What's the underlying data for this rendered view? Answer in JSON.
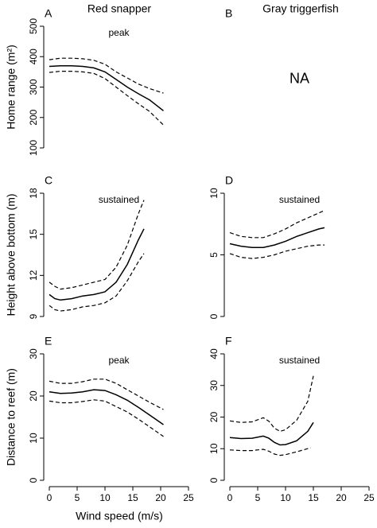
{
  "column_titles": [
    "Red snapper",
    "Gray triggerfish"
  ],
  "x_label": "Wind speed (m/s)",
  "chart_data": [
    {
      "type": "line",
      "panel_label": "A",
      "annotation": "peak",
      "ylabel": "Home range (m²)",
      "xlim": [
        0,
        25
      ],
      "ylim": [
        100,
        500
      ],
      "yticks": [
        100,
        200,
        300,
        400,
        500
      ],
      "series": [
        {
          "color": "#000000",
          "dashed": false,
          "x": [
            0,
            2,
            4,
            6,
            8,
            10,
            12,
            14,
            16,
            18,
            20.5
          ],
          "values": [
            368,
            370,
            370,
            368,
            363,
            350,
            325,
            300,
            278,
            258,
            222
          ]
        },
        {
          "color": "#000000",
          "dashed": true,
          "x": [
            0,
            2,
            4,
            6,
            8,
            10,
            12,
            14,
            16,
            18,
            20.5
          ],
          "values": [
            390,
            395,
            395,
            393,
            388,
            375,
            350,
            330,
            310,
            295,
            280
          ]
        },
        {
          "color": "#000000",
          "dashed": true,
          "x": [
            0,
            2,
            4,
            6,
            8,
            10,
            12,
            14,
            16,
            18,
            20.5
          ],
          "values": [
            348,
            352,
            352,
            350,
            345,
            328,
            300,
            272,
            245,
            220,
            175
          ]
        }
      ]
    },
    {
      "type": "line",
      "panel_label": "B",
      "annotation": "NA",
      "series": []
    },
    {
      "type": "line",
      "panel_label": "C",
      "annotation": "sustained",
      "ylabel": "Height above bottom (m)",
      "xlim": [
        0,
        25
      ],
      "ylim": [
        9,
        18
      ],
      "yticks": [
        9,
        12,
        15,
        18
      ],
      "series": [
        {
          "color": "#000000",
          "dashed": false,
          "x": [
            0,
            1,
            2,
            4,
            6,
            8,
            10,
            12,
            14,
            16,
            17
          ],
          "values": [
            10.6,
            10.3,
            10.2,
            10.3,
            10.5,
            10.6,
            10.8,
            11.5,
            12.8,
            14.6,
            15.4
          ]
        },
        {
          "color": "#000000",
          "dashed": true,
          "x": [
            0,
            1,
            2,
            4,
            6,
            8,
            10,
            12,
            14,
            16,
            17
          ],
          "values": [
            11.5,
            11.2,
            11.0,
            11.1,
            11.3,
            11.5,
            11.7,
            12.6,
            14.2,
            16.5,
            17.5
          ]
        },
        {
          "color": "#000000",
          "dashed": true,
          "x": [
            0,
            1,
            2,
            4,
            6,
            8,
            10,
            12,
            14,
            16,
            17
          ],
          "values": [
            9.8,
            9.5,
            9.4,
            9.5,
            9.7,
            9.8,
            10.0,
            10.5,
            11.6,
            13.0,
            13.6
          ]
        }
      ]
    },
    {
      "type": "line",
      "panel_label": "D",
      "annotation": "sustained",
      "xlim": [
        0,
        25
      ],
      "ylim": [
        0,
        10
      ],
      "yticks": [
        0,
        5,
        10
      ],
      "series": [
        {
          "color": "#000000",
          "dashed": false,
          "x": [
            0,
            2,
            4,
            6,
            8,
            10,
            12,
            14,
            16,
            17
          ],
          "values": [
            5.9,
            5.7,
            5.6,
            5.6,
            5.8,
            6.1,
            6.5,
            6.8,
            7.1,
            7.2
          ]
        },
        {
          "color": "#000000",
          "dashed": true,
          "x": [
            0,
            2,
            4,
            6,
            8,
            10,
            12,
            14,
            16,
            17
          ],
          "values": [
            6.8,
            6.5,
            6.4,
            6.4,
            6.7,
            7.1,
            7.6,
            8.0,
            8.4,
            8.6
          ]
        },
        {
          "color": "#000000",
          "dashed": true,
          "x": [
            0,
            2,
            4,
            6,
            8,
            10,
            12,
            14,
            16,
            17
          ],
          "values": [
            5.1,
            4.8,
            4.7,
            4.8,
            5.0,
            5.3,
            5.5,
            5.7,
            5.8,
            5.8
          ]
        }
      ]
    },
    {
      "type": "line",
      "panel_label": "E",
      "annotation": "peak",
      "ylabel": "Distance to reef (m)",
      "xlim": [
        0,
        25
      ],
      "xticks": [
        0,
        5,
        10,
        15,
        20,
        25
      ],
      "ylim": [
        0,
        30
      ],
      "yticks": [
        0,
        10,
        20,
        30
      ],
      "series": [
        {
          "color": "#000000",
          "dashed": false,
          "x": [
            0,
            2,
            4,
            6,
            8,
            10,
            12,
            14,
            16,
            18,
            20.5
          ],
          "values": [
            21,
            20.6,
            20.7,
            21.0,
            21.5,
            21.3,
            20.3,
            19,
            17.3,
            15.5,
            13.2
          ]
        },
        {
          "color": "#000000",
          "dashed": true,
          "x": [
            0,
            2,
            4,
            6,
            8,
            10,
            12,
            14,
            16,
            18,
            20.5
          ],
          "values": [
            23.5,
            23,
            23,
            23.4,
            24,
            24,
            23,
            21.5,
            20,
            18.5,
            16.8
          ]
        },
        {
          "color": "#000000",
          "dashed": true,
          "x": [
            0,
            2,
            4,
            6,
            8,
            10,
            12,
            14,
            16,
            18,
            20.5
          ],
          "values": [
            18.8,
            18.4,
            18.4,
            18.7,
            19.1,
            18.8,
            17.5,
            16.2,
            14.5,
            12.7,
            10.4
          ]
        }
      ]
    },
    {
      "type": "line",
      "panel_label": "F",
      "annotation": "sustained",
      "xlim": [
        0,
        25
      ],
      "xticks": [
        0,
        5,
        10,
        15,
        20,
        25
      ],
      "ylim": [
        0,
        40
      ],
      "yticks": [
        0,
        10,
        20,
        30,
        40
      ],
      "series": [
        {
          "color": "#000000",
          "dashed": false,
          "x": [
            0,
            2,
            4,
            6,
            7,
            8,
            9,
            10,
            12,
            14,
            15
          ],
          "values": [
            13.5,
            13.2,
            13.3,
            14,
            13.3,
            12,
            11.2,
            11.3,
            12.5,
            15.5,
            18.3
          ]
        },
        {
          "color": "#000000",
          "dashed": true,
          "x": [
            0,
            2,
            4,
            6,
            7,
            8,
            9,
            10,
            12,
            14,
            15
          ],
          "values": [
            18.8,
            18.3,
            18.5,
            19.8,
            18.7,
            16.5,
            15.5,
            16,
            19,
            25,
            33
          ]
        },
        {
          "color": "#000000",
          "dashed": true,
          "x": [
            0,
            2,
            4,
            6,
            7,
            8,
            9,
            10,
            12,
            14.5
          ],
          "values": [
            9.6,
            9.4,
            9.4,
            9.8,
            9.2,
            8.3,
            7.9,
            8.1,
            9,
            10.3
          ]
        }
      ]
    }
  ]
}
